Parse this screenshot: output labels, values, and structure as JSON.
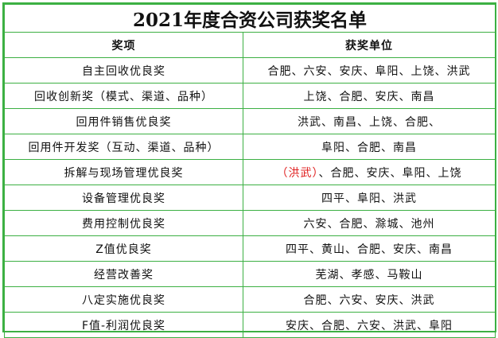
{
  "title": "2021年度合资公司获奖名单",
  "columns": [
    "奖项",
    "获奖单位"
  ],
  "colors": {
    "border": "#3cb043",
    "highlight": "#e02020"
  },
  "rows": [
    {
      "award": "自主回收优良奖",
      "highlight": "",
      "units": "合肥、六安、安庆、阜阳、上饶、洪武"
    },
    {
      "award": "回收创新奖（模式、渠道、品种）",
      "highlight": "",
      "units": "上饶、合肥、安庆、南昌"
    },
    {
      "award": "回用件销售优良奖",
      "highlight": "",
      "units": "洪武、南昌、上饶、合肥、"
    },
    {
      "award": "回用件开发奖（互动、渠道、品种）",
      "highlight": "",
      "units": "阜阳、合肥、南昌"
    },
    {
      "award": "拆解与现场管理优良奖",
      "highlight": "（洪武）",
      "units": "、合肥、安庆、阜阳、上饶"
    },
    {
      "award": "设备管理优良奖",
      "highlight": "",
      "units": "四平、阜阳、洪武"
    },
    {
      "award": "费用控制优良奖",
      "highlight": "",
      "units": "六安、合肥、滁城、池州"
    },
    {
      "award": "Z值优良奖",
      "highlight": "",
      "units": "四平、黄山、合肥、安庆、南昌"
    },
    {
      "award": "经营改善奖",
      "highlight": "",
      "units": "芜湖、孝感、马鞍山"
    },
    {
      "award": "八定实施优良奖",
      "highlight": "",
      "units": "合肥、六安、安庆、洪武"
    },
    {
      "award": "F值-利润优良奖",
      "highlight": "",
      "units": "安庆、合肥、六安、洪武、阜阳"
    }
  ]
}
